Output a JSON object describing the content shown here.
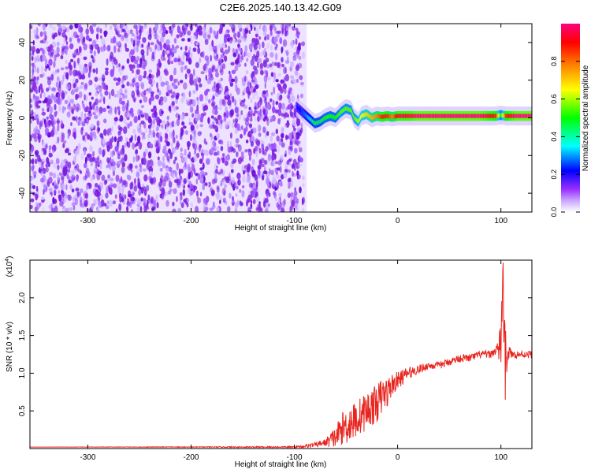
{
  "title": "C2E6.2025.140.13.42.G09",
  "colors": {
    "snr_line": "#e8261f",
    "spectrogram_noise": "#7a1fe0",
    "axis": "#000000"
  },
  "chart_data": [
    {
      "type": "heatmap",
      "xlabel": "Height of straight line (km)",
      "ylabel": "Frequency (Hz)",
      "xlim": [
        -356,
        130
      ],
      "ylim": [
        -50,
        50
      ],
      "x_ticks": [
        -300,
        -200,
        -100,
        0,
        100
      ],
      "y_ticks": [
        -40,
        -20,
        0,
        20,
        40
      ],
      "noise_region_x": [
        -356,
        -88
      ],
      "signal_track": {
        "x": [
          -98,
          -92,
          -88,
          -84,
          -80,
          -75,
          -70,
          -65,
          -60,
          -55,
          -50,
          -45,
          -42,
          -38,
          -35,
          -30,
          -25,
          -20,
          -15,
          -10,
          -5,
          0,
          10,
          20,
          40,
          60,
          80,
          95,
          100,
          105,
          115,
          130
        ],
        "freq": [
          6,
          3,
          1,
          -1,
          -3,
          -2,
          0,
          1,
          0,
          3,
          5,
          4,
          0,
          -2,
          1,
          2,
          0,
          1,
          0.5,
          1,
          0.5,
          1,
          1,
          1,
          1,
          1,
          1,
          1,
          1.5,
          1,
          1,
          1
        ],
        "amplitude": [
          0.15,
          0.25,
          0.3,
          0.4,
          0.45,
          0.45,
          0.5,
          0.5,
          0.5,
          0.55,
          0.55,
          0.55,
          0.55,
          0.6,
          0.65,
          0.7,
          0.75,
          0.8,
          0.9,
          0.9,
          0.8,
          0.95,
          0.95,
          1.0,
          1.0,
          1.0,
          1.0,
          0.9,
          0.5,
          0.9,
          1.0,
          1.0
        ]
      },
      "colorbar": {
        "label": "Normalized spectral amplitude",
        "ticks": [
          "0.0",
          "0.2",
          "0.4",
          "0.6",
          "0.8"
        ],
        "range": [
          0,
          1
        ],
        "stops": [
          "#ffffff",
          "#9b30ff",
          "#0000ff",
          "#00ffff",
          "#00ff00",
          "#ffff00",
          "#ff8000",
          "#ff0000",
          "#ff0080"
        ]
      }
    },
    {
      "type": "line",
      "xlabel": "Height of straight line (km)",
      "ylabel": "SNR (10 * v/v)",
      "y_multiplier": "(x10",
      "y_multiplier_exp": "4",
      "multiplier_close": ")",
      "xlim": [
        -356,
        130
      ],
      "ylim": [
        0,
        2.5
      ],
      "x_ticks": [
        -300,
        -200,
        -100,
        0,
        100
      ],
      "y_ticks": [
        0.5,
        1.0,
        1.5,
        2.0
      ],
      "y_tick_labels": [
        "0.5",
        "1.0",
        "1.5",
        "2.0"
      ],
      "series": [
        {
          "x": [
            -356,
            -200,
            -100,
            -90,
            -80,
            -70,
            -60,
            -55,
            -50,
            -45,
            -40,
            -35,
            -30,
            -25,
            -20,
            -15,
            -10,
            -5,
            0,
            10,
            20,
            30,
            40,
            50,
            60,
            70,
            80,
            90,
            95,
            100,
            102,
            104,
            106,
            110,
            120,
            130
          ],
          "y": [
            0.02,
            0.02,
            0.02,
            0.03,
            0.05,
            0.08,
            0.15,
            0.25,
            0.3,
            0.35,
            0.38,
            0.45,
            0.5,
            0.55,
            0.6,
            0.7,
            0.75,
            0.85,
            0.9,
            1.0,
            1.05,
            1.1,
            1.1,
            1.15,
            1.2,
            1.2,
            1.25,
            1.25,
            1.3,
            1.35,
            2.4,
            1.0,
            1.3,
            1.25,
            1.25,
            1.25
          ],
          "noise": [
            0.0,
            0.005,
            0.01,
            0.02,
            0.03,
            0.05,
            0.15,
            0.2,
            0.25,
            0.25,
            0.25,
            0.25,
            0.25,
            0.25,
            0.25,
            0.25,
            0.2,
            0.15,
            0.12,
            0.08,
            0.06,
            0.05,
            0.05,
            0.05,
            0.05,
            0.05,
            0.05,
            0.05,
            0.06,
            0.3,
            0.5,
            0.6,
            0.2,
            0.05,
            0.05,
            0.05
          ]
        }
      ]
    }
  ]
}
